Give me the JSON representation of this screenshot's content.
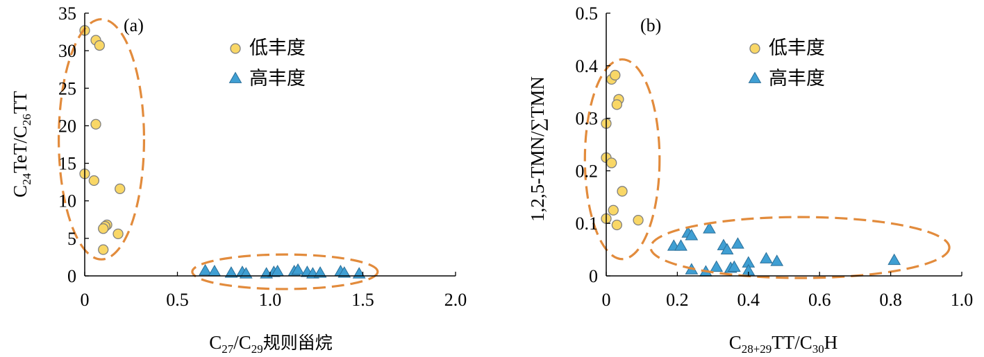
{
  "colors": {
    "low_fill": "#f9d766",
    "low_stroke": "#7f7f7f",
    "high_fill": "#3f9fd3",
    "high_stroke": "#2b6f99",
    "ellipse": "#e28b3c"
  },
  "chart_data": [
    {
      "type": "scatter",
      "panel_label": "(a)",
      "xlabel": "C27/C29规则甾烷",
      "ylabel": "C24TeT/C26TT",
      "xlim": [
        0,
        2.0
      ],
      "ylim": [
        0,
        35
      ],
      "xticks": [
        0,
        0.5,
        1.0,
        1.5,
        2.0
      ],
      "xtick_labels": [
        "0",
        "0.5",
        "1.0",
        "1.5",
        "2.0"
      ],
      "yticks": [
        0,
        5,
        10,
        15,
        20,
        25,
        30,
        35
      ],
      "ytick_labels": [
        "0",
        "5",
        "10",
        "15",
        "20",
        "25",
        "30",
        "35"
      ],
      "grid": false,
      "legend_position": "top-right",
      "series": [
        {
          "name": "低丰度",
          "marker": "circle",
          "x": [
            0.0,
            0.06,
            0.08,
            0.06,
            0.0,
            0.05,
            0.19,
            0.12,
            0.11,
            0.1,
            0.18,
            0.1
          ],
          "y": [
            32.7,
            31.4,
            30.7,
            20.2,
            13.6,
            12.7,
            11.6,
            6.8,
            6.6,
            6.3,
            5.6,
            3.5
          ]
        },
        {
          "name": "高丰度",
          "marker": "triangle",
          "x": [
            0.65,
            0.7,
            0.79,
            0.85,
            0.87,
            0.98,
            1.02,
            1.04,
            1.13,
            1.15,
            1.2,
            1.23,
            1.27,
            1.38,
            1.4,
            1.48
          ],
          "y": [
            0.7,
            0.6,
            0.4,
            0.5,
            0.3,
            0.3,
            0.5,
            0.6,
            0.6,
            0.8,
            0.5,
            0.3,
            0.4,
            0.6,
            0.4,
            0.3
          ]
        }
      ],
      "annotations": [
        {
          "type": "dashed-ellipse",
          "cx": 0.09,
          "cy": 18.2,
          "rx": 0.23,
          "ry": 16.0
        },
        {
          "type": "dashed-ellipse",
          "cx": 1.08,
          "cy": 0.55,
          "rx": 0.5,
          "ry": 2.3
        }
      ]
    },
    {
      "type": "scatter",
      "panel_label": "(b)",
      "xlabel": "C28+29TT/C30H",
      "ylabel": "1,2,5-TMN/∑TMN",
      "xlim": [
        0,
        1.0
      ],
      "ylim": [
        0,
        0.5
      ],
      "xticks": [
        0,
        0.2,
        0.4,
        0.6,
        0.8,
        1.0
      ],
      "xtick_labels": [
        "0",
        "0.2",
        "0.4",
        "0.6",
        "0.8",
        "1.0"
      ],
      "yticks": [
        0,
        0.1,
        0.2,
        0.3,
        0.4,
        0.5
      ],
      "ytick_labels": [
        "0",
        "0.1",
        "0.2",
        "0.3",
        "0.4",
        "0.5"
      ],
      "grid": false,
      "legend_position": "top-right",
      "series": [
        {
          "name": "低丰度",
          "marker": "circle",
          "x": [
            0.015,
            0.025,
            0.035,
            0.03,
            0.0,
            0.0,
            0.015,
            0.045,
            0.02,
            0.0,
            0.09,
            0.03
          ],
          "y": [
            0.374,
            0.382,
            0.336,
            0.326,
            0.29,
            0.225,
            0.215,
            0.161,
            0.125,
            0.109,
            0.106,
            0.097
          ]
        },
        {
          "name": "高丰度",
          "marker": "triangle",
          "x": [
            0.19,
            0.21,
            0.23,
            0.24,
            0.29,
            0.33,
            0.34,
            0.37,
            0.24,
            0.28,
            0.31,
            0.35,
            0.36,
            0.4,
            0.4,
            0.45,
            0.48,
            0.81
          ],
          "y": [
            0.057,
            0.057,
            0.082,
            0.077,
            0.09,
            0.058,
            0.05,
            0.061,
            0.012,
            0.008,
            0.017,
            0.015,
            0.017,
            0.025,
            0.01,
            0.033,
            0.028,
            0.03
          ]
        }
      ],
      "annotations": [
        {
          "type": "dashed-ellipse",
          "cx": 0.045,
          "cy": 0.222,
          "rx": 0.105,
          "ry": 0.19
        },
        {
          "type": "dashed-ellipse",
          "cx": 0.545,
          "cy": 0.054,
          "rx": 0.42,
          "ry": 0.058
        }
      ]
    }
  ]
}
